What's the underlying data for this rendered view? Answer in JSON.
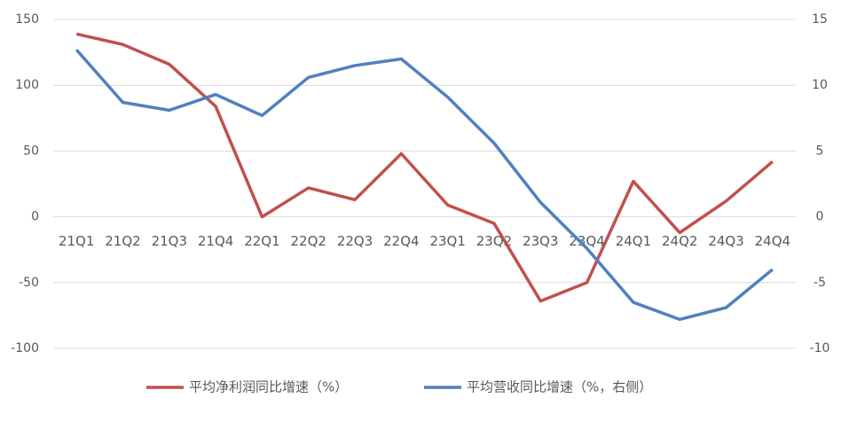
{
  "chart_data": {
    "type": "line",
    "categories": [
      "21Q1",
      "21Q2",
      "21Q3",
      "21Q4",
      "22Q1",
      "22Q2",
      "22Q3",
      "22Q4",
      "23Q1",
      "23Q2",
      "23Q3",
      "23Q4",
      "24Q1",
      "24Q2",
      "24Q3",
      "24Q4"
    ],
    "series": [
      {
        "name": "平均净利润同比增速（%）",
        "color": "#c0504d",
        "values": [
          139,
          131,
          116,
          84,
          0,
          22,
          13,
          48,
          9,
          -5,
          -64,
          -50,
          27,
          -12,
          12,
          42
        ]
      },
      {
        "name": "平均营收同比增速（%，右侧）",
        "color": "#4f81bd",
        "axis": "y2",
        "values": [
          12.7,
          8.7,
          8.1,
          9.3,
          7.7,
          10.6,
          11.5,
          12.0,
          9.1,
          5.6,
          1.1,
          -2.4,
          -6.5,
          -7.8,
          -6.9,
          -4.0
        ]
      }
    ],
    "ylim": [
      -100,
      150
    ],
    "yticks": [
      -100,
      -50,
      0,
      50,
      100,
      150
    ],
    "y2lim": [
      -10,
      15
    ],
    "y2ticks": [
      -10,
      -5,
      0,
      5,
      10,
      15
    ],
    "grid": true,
    "legend": "bottom"
  }
}
